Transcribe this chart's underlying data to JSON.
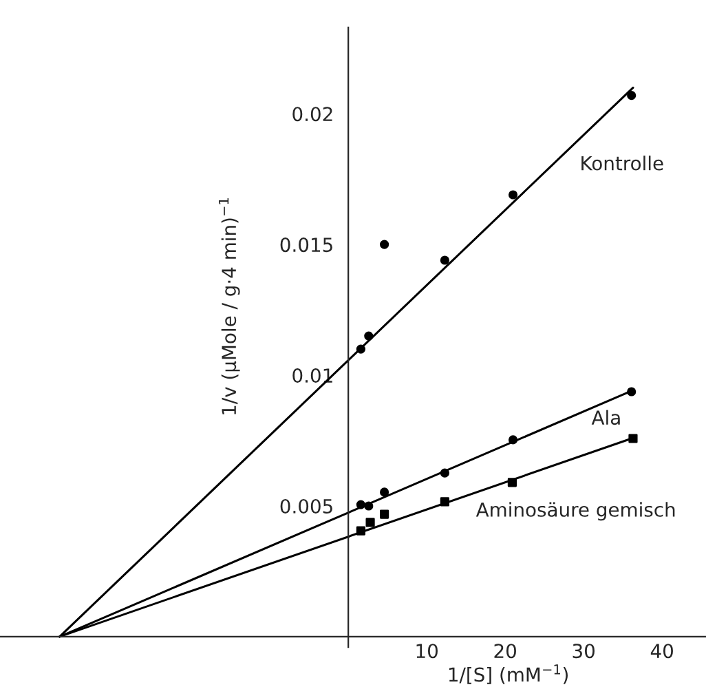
{
  "chart_data": {
    "type": "scatter",
    "xlabel": "1/[S] (mM$^{−1}$)",
    "ylabel": "1/v (µMole / g·4 min)$^{−1}$",
    "xlim": [
      -44.4,
      45.6
    ],
    "ylim": [
      -0.0004,
      0.0233
    ],
    "xticks": [
      10,
      20,
      30,
      40
    ],
    "yticks": [
      0.005,
      0.01,
      0.015,
      0.02
    ],
    "grid": false,
    "series": [
      {
        "color": "#000000",
        "marker": "circle",
        "x": [
          1.6,
          2.6,
          4.6,
          12.3,
          21,
          36.1
        ],
        "values": [
          0.011,
          0.0115,
          0.015,
          0.0144,
          0.0169,
          0.0207
        ]
      },
      {
        "color": "#000000",
        "marker": "circle",
        "x": [
          1.6,
          2.6,
          4.6,
          12.3,
          21,
          36.1
        ],
        "values": [
          0.00505,
          0.005,
          0.00553,
          0.00626,
          0.00753,
          0.00937
        ]
      },
      {
        "color": "#000000",
        "marker": "square",
        "x": [
          1.6,
          2.8,
          4.6,
          12.3,
          20.9,
          36.3
        ],
        "values": [
          0.00405,
          0.00437,
          0.00468,
          0.00516,
          0.0059,
          0.00758
        ]
      },
      {
        "type": "line",
        "name": "Kontrolle",
        "color": "#000000",
        "line_style": "solid",
        "x": [
          -36.8,
          36.3
        ],
        "values": [
          0,
          0.021
        ]
      },
      {
        "type": "line",
        "name": "Ala",
        "color": "#000000",
        "line_style": "solid",
        "x": [
          -36.8,
          36.1
        ],
        "values": [
          0,
          0.0094
        ]
      },
      {
        "type": "line",
        "name": "Aminosäure gemisch",
        "color": "#000000",
        "line_style": "solid",
        "x": [
          -36.8,
          36.3
        ],
        "values": [
          0,
          0.0076
        ]
      }
    ]
  }
}
